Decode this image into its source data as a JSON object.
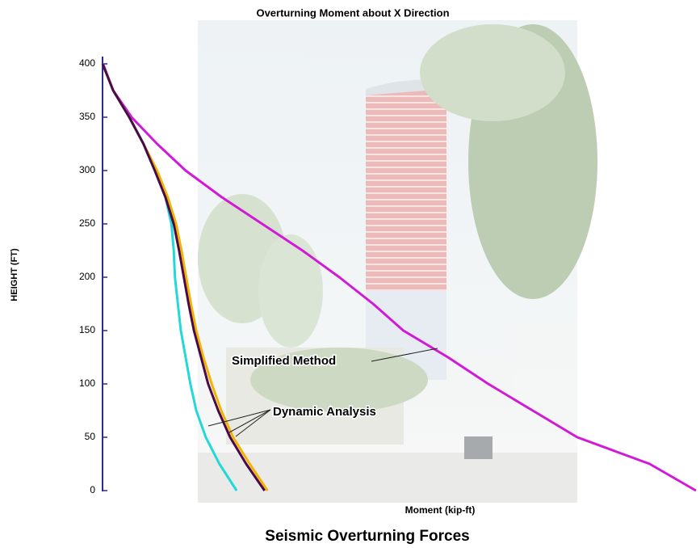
{
  "chart_data": {
    "type": "line",
    "title": "Overturning Moment about X Direction",
    "x_label": "Moment (kip-ft)",
    "y_label": "HEIGHT (FT)",
    "caption": "Seismic Overturning Forces",
    "annotations": [
      "Simplified Method",
      "Dynamic Analysis"
    ],
    "heights": [
      0,
      25,
      50,
      75,
      100,
      125,
      150,
      175,
      200,
      225,
      250,
      275,
      300,
      325,
      350,
      375,
      400
    ],
    "series": [
      {
        "color": "#d11ad8",
        "values": [
          100,
          92.2,
          80.0,
          72.5,
          65.0,
          58.2,
          50.7,
          45.6,
          39.9,
          33.7,
          26.9,
          20.1,
          14.0,
          9.2,
          4.9,
          1.8,
          0.1
        ]
      },
      {
        "color": "#22d8d8",
        "values": [
          22.6,
          19.7,
          17.4,
          15.8,
          14.8,
          14.0,
          13.2,
          12.7,
          12.2,
          12.0,
          11.6,
          10.6,
          8.8,
          6.9,
          4.5,
          1.8,
          0.0
        ]
      },
      {
        "color": "#f2b400",
        "values": [
          27.8,
          24.8,
          22.0,
          20.0,
          18.4,
          17.0,
          15.8,
          14.9,
          14.1,
          13.3,
          12.4,
          11.0,
          9.2,
          6.9,
          4.5,
          1.8,
          0.0
        ]
      },
      {
        "color": "#4a0a4a",
        "values": [
          27.3,
          24.2,
          21.5,
          19.5,
          17.8,
          16.6,
          15.4,
          14.5,
          13.7,
          12.9,
          12.0,
          10.6,
          8.8,
          6.9,
          4.5,
          1.8,
          0.0
        ]
      }
    ],
    "xlim": [
      0,
      100
    ],
    "ylim": [
      0,
      400
    ],
    "yticks": [
      0,
      50,
      100,
      150,
      200,
      250,
      300,
      350,
      400
    ]
  }
}
